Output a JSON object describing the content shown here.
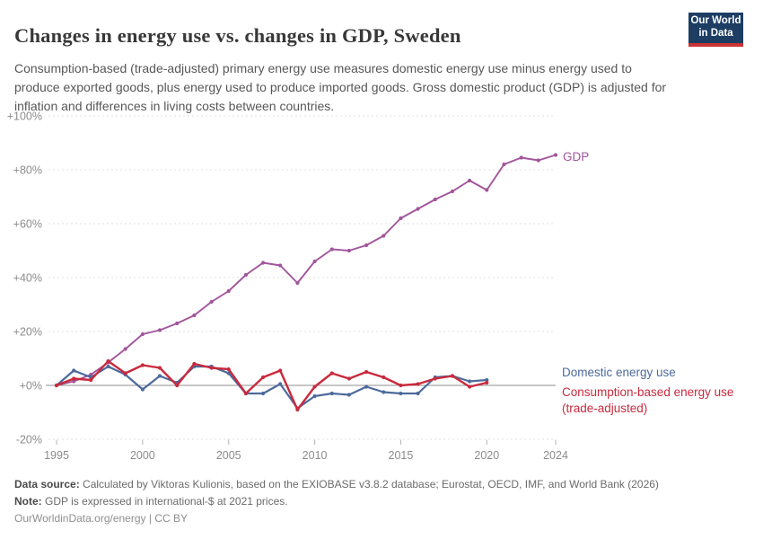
{
  "header": {
    "title": "Changes in energy use vs. changes in GDP, Sweden",
    "subtitle": "Consumption-based (trade-adjusted) primary energy use measures domestic energy use minus energy used to produce exported goods, plus energy used to produce imported goods. Gross domestic product (GDP) is adjusted for inflation and differences in living costs between countries.",
    "logo": {
      "line1": "Our World",
      "line2": "in Data",
      "bg_color": "#1d3d63",
      "accent_color": "#cb3434"
    }
  },
  "chart_data": {
    "type": "line",
    "title": "Changes in energy use vs. changes in GDP, Sweden",
    "xlabel": "",
    "ylabel": "",
    "x_range": [
      1995,
      2024
    ],
    "ylim": [
      -20,
      100
    ],
    "grid": "horizontal-dashed",
    "legend_position": "right-of-line-ends",
    "unit": "% change since 1995",
    "series": [
      {
        "name": "GDP",
        "color": "#a2559c",
        "label_lines": [
          "GDP"
        ],
        "start_year": 1995,
        "values": [
          0,
          1.5,
          4,
          8.5,
          13.5,
          19,
          20.5,
          23,
          26,
          31,
          35,
          41,
          45.5,
          44.5,
          38,
          46,
          50.5,
          50,
          52,
          55.5,
          62,
          65.5,
          69,
          72,
          76,
          72.5,
          82,
          84.5,
          83.5,
          85.5
        ]
      },
      {
        "name": "Domestic energy use",
        "color": "#4c6a9c",
        "label_lines": [
          "Domestic energy use"
        ],
        "start_year": 1995,
        "values": [
          0,
          5.5,
          3,
          7,
          4,
          -1.5,
          3.5,
          1,
          7,
          7,
          4.5,
          -3,
          -3,
          0.5,
          -8.5,
          -4,
          -3,
          -3.5,
          -0.5,
          -2.5,
          -3,
          -3,
          3,
          3.5,
          1.5,
          2
        ]
      },
      {
        "name": "Consumption-based energy use (trade-adjusted)",
        "color": "#c92a3d",
        "label_lines": [
          "Consumption-based energy use",
          "(trade-adjusted)"
        ],
        "start_year": 1995,
        "values": [
          0,
          2.5,
          2,
          9,
          4.5,
          7.5,
          6.5,
          0,
          8,
          6.5,
          6,
          -3,
          3,
          5.5,
          -9,
          -0.5,
          4.5,
          2.5,
          5,
          3,
          0,
          0.5,
          2.5,
          3.5,
          -0.5,
          1
        ]
      }
    ]
  },
  "axes": {
    "y_ticks": [
      {
        "value": 100,
        "label": "+100%"
      },
      {
        "value": 80,
        "label": "+80%"
      },
      {
        "value": 60,
        "label": "+60%"
      },
      {
        "value": 40,
        "label": "+40%"
      },
      {
        "value": 20,
        "label": "+20%"
      },
      {
        "value": 0,
        "label": "+0%"
      },
      {
        "value": -20,
        "label": "-20%"
      }
    ],
    "x_ticks": [
      {
        "year": 1995,
        "label": "1995"
      },
      {
        "year": 2000,
        "label": "2000"
      },
      {
        "year": 2005,
        "label": "2005"
      },
      {
        "year": 2010,
        "label": "2010"
      },
      {
        "year": 2015,
        "label": "2015"
      },
      {
        "year": 2020,
        "label": "2020"
      },
      {
        "year": 2024,
        "label": "2024"
      }
    ]
  },
  "footer": {
    "data_source_label": "Data source:",
    "data_source_text": " Calculated by Viktoras Kulionis, based on the EXIOBASE v3.8.2 database; Eurostat, OECD, IMF, and World Bank (2026)",
    "note_label": "Note:",
    "note_text": " GDP is expressed in international-$ at 2021 prices.",
    "credit": "OurWorldinData.org/energy | CC BY"
  }
}
